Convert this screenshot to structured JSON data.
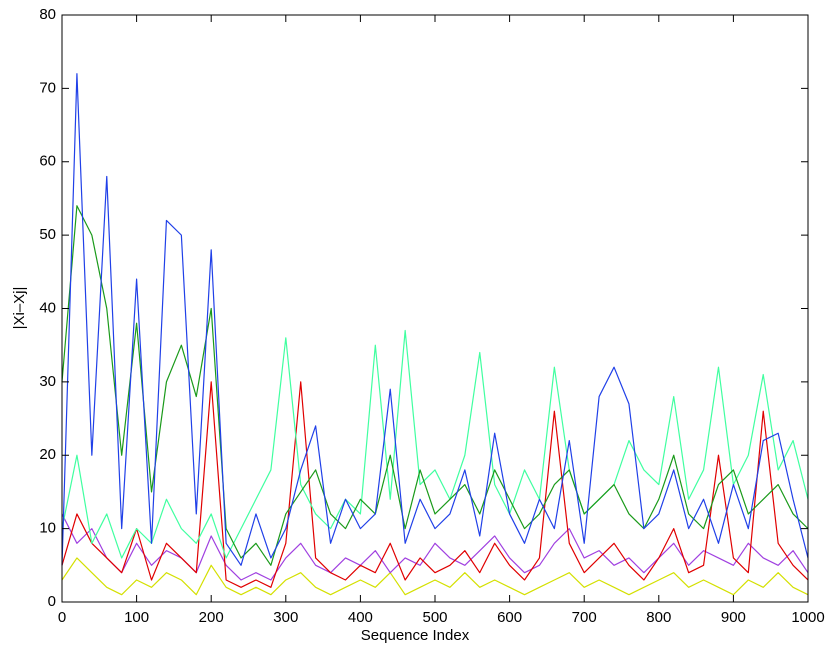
{
  "chart_data": {
    "type": "line",
    "x_label": "Sequence Index",
    "y_label": "|Xi–Xj|",
    "xlim": [
      0,
      1000
    ],
    "xticks": [
      0,
      100,
      200,
      300,
      400,
      500,
      600,
      700,
      800,
      900,
      1000
    ],
    "ylim": [
      0,
      80
    ],
    "yticks": [
      0,
      10,
      20,
      30,
      40,
      50,
      60,
      70,
      80
    ],
    "x": [
      0,
      20,
      40,
      60,
      80,
      100,
      120,
      140,
      160,
      180,
      200,
      220,
      240,
      260,
      280,
      300,
      320,
      340,
      360,
      380,
      400,
      420,
      440,
      460,
      480,
      500,
      520,
      540,
      560,
      580,
      600,
      620,
      640,
      660,
      680,
      700,
      720,
      740,
      760,
      780,
      800,
      820,
      840,
      860,
      880,
      900,
      920,
      940,
      960,
      980,
      1000
    ],
    "series": [
      {
        "color": "#d4e000",
        "values": [
          3,
          6,
          4,
          2,
          1,
          3,
          2,
          4,
          3,
          1,
          5,
          2,
          1,
          2,
          1,
          3,
          4,
          2,
          1,
          2,
          3,
          2,
          4,
          1,
          2,
          3,
          2,
          4,
          2,
          3,
          2,
          1,
          2,
          3,
          4,
          2,
          3,
          2,
          1,
          2,
          3,
          4,
          2,
          3,
          2,
          1,
          3,
          2,
          4,
          2,
          1
        ]
      },
      {
        "color": "#a040e0",
        "values": [
          12,
          8,
          10,
          6,
          4,
          8,
          5,
          7,
          6,
          4,
          9,
          5,
          3,
          4,
          3,
          6,
          8,
          5,
          4,
          6,
          5,
          7,
          4,
          6,
          5,
          8,
          6,
          5,
          7,
          9,
          6,
          4,
          5,
          8,
          10,
          6,
          7,
          5,
          6,
          4,
          6,
          8,
          5,
          7,
          6,
          5,
          8,
          6,
          5,
          7,
          4
        ]
      },
      {
        "color": "#e00000",
        "values": [
          5,
          12,
          8,
          6,
          4,
          10,
          3,
          8,
          6,
          4,
          30,
          3,
          2,
          3,
          2,
          8,
          30,
          6,
          4,
          3,
          5,
          4,
          8,
          3,
          6,
          4,
          5,
          7,
          4,
          8,
          5,
          3,
          6,
          26,
          8,
          4,
          6,
          8,
          5,
          3,
          6,
          10,
          4,
          5,
          20,
          6,
          4,
          26,
          8,
          5,
          3
        ]
      },
      {
        "color": "#40ffa0",
        "values": [
          10,
          20,
          8,
          12,
          6,
          10,
          8,
          14,
          10,
          8,
          12,
          6,
          10,
          14,
          18,
          36,
          16,
          12,
          10,
          14,
          12,
          35,
          14,
          37,
          16,
          18,
          14,
          20,
          34,
          16,
          12,
          18,
          14,
          32,
          18,
          12,
          14,
          16,
          22,
          18,
          16,
          28,
          14,
          18,
          32,
          16,
          20,
          31,
          18,
          22,
          14
        ]
      },
      {
        "color": "#1a9a1a",
        "values": [
          30,
          54,
          50,
          40,
          20,
          38,
          15,
          30,
          35,
          28,
          40,
          10,
          6,
          8,
          5,
          12,
          15,
          18,
          12,
          10,
          14,
          12,
          20,
          10,
          18,
          12,
          14,
          16,
          12,
          18,
          14,
          10,
          12,
          16,
          18,
          12,
          14,
          16,
          12,
          10,
          14,
          20,
          12,
          10,
          16,
          18,
          12,
          14,
          16,
          12,
          10
        ]
      },
      {
        "color": "#2040e8",
        "values": [
          5,
          72,
          20,
          58,
          10,
          44,
          8,
          52,
          50,
          12,
          48,
          8,
          5,
          12,
          6,
          10,
          18,
          24,
          8,
          14,
          10,
          12,
          29,
          8,
          14,
          10,
          12,
          18,
          9,
          23,
          12,
          8,
          14,
          10,
          22,
          8,
          28,
          32,
          27,
          10,
          12,
          18,
          10,
          14,
          8,
          16,
          10,
          22,
          23,
          14,
          6
        ]
      }
    ]
  }
}
